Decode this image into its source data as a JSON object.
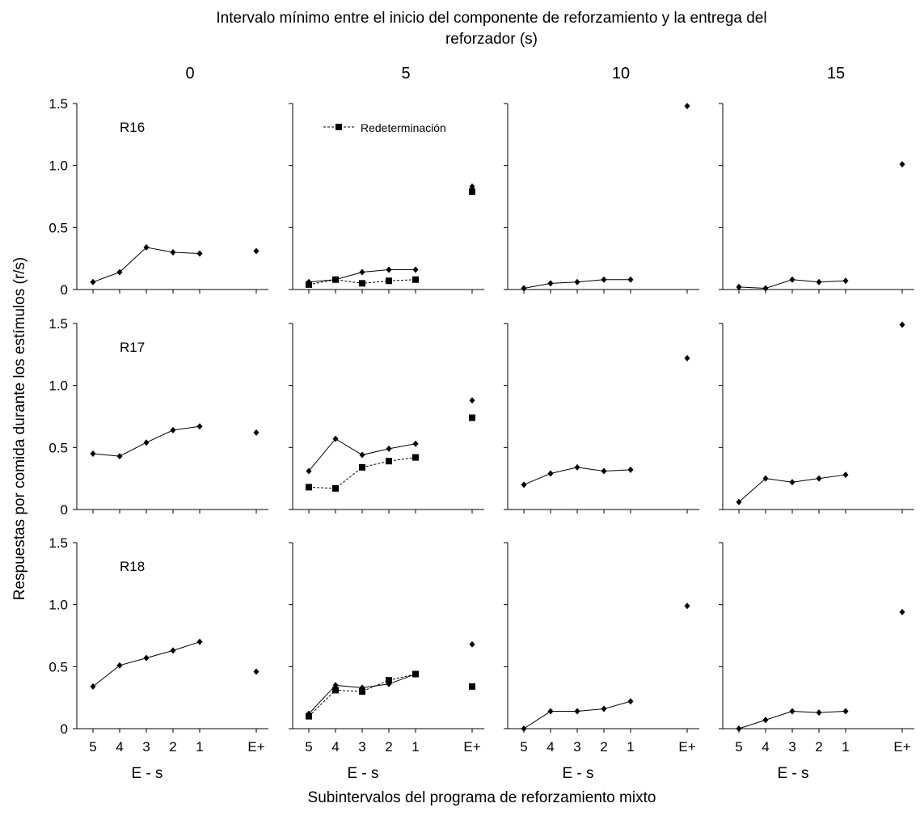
{
  "figure": {
    "title": "Intervalo mínimo entre el inicio del componente de reforzamiento y la entrega del reforzador (s)",
    "title_lines": [
      "Intervalo mínimo entre el inicio del componente de reforzamiento y la entrega del",
      "reforzador (s)"
    ],
    "ylabel": "Respuestas por comida durante los estímulos (r/s)",
    "xlabel": "Subintervalos del programa de reforzamiento mixto",
    "panel_xlabel": "E - s",
    "column_headers": [
      "0",
      "5",
      "10",
      "15"
    ],
    "row_labels": [
      "R16",
      "R17",
      "R18"
    ],
    "legend_label": "Redeterminación"
  },
  "chart_data": {
    "type": "line",
    "layout": "3 rows (subjects) x 4 columns (interval s)",
    "categories": [
      "5",
      "4",
      "3",
      "2",
      "1",
      "E+"
    ],
    "yticks": [
      "0",
      "0.5",
      "1.0",
      "1.5"
    ],
    "ylim": [
      0,
      1.5
    ],
    "grid": false,
    "legend": "top, second column",
    "panels": [
      {
        "subject": "R16",
        "interval": "0",
        "series": [
          {
            "values": [
              0.06,
              0.14,
              0.34,
              0.3,
              0.29,
              0.31
            ]
          }
        ]
      },
      {
        "subject": "R16",
        "interval": "5",
        "series": [
          {
            "values": [
              0.06,
              0.08,
              0.14,
              0.16,
              0.16,
              0.83
            ]
          },
          {
            "name": "Redeterminación",
            "values": [
              0.04,
              0.08,
              0.05,
              0.07,
              0.08,
              0.79
            ]
          }
        ]
      },
      {
        "subject": "R16",
        "interval": "10",
        "series": [
          {
            "values": [
              0.01,
              0.05,
              0.06,
              0.08,
              0.08,
              1.48
            ]
          }
        ]
      },
      {
        "subject": "R16",
        "interval": "15",
        "series": [
          {
            "values": [
              0.02,
              0.01,
              0.08,
              0.06,
              0.07,
              1.01
            ]
          }
        ]
      },
      {
        "subject": "R17",
        "interval": "0",
        "series": [
          {
            "values": [
              0.45,
              0.43,
              0.54,
              0.64,
              0.67,
              0.62
            ]
          }
        ]
      },
      {
        "subject": "R17",
        "interval": "5",
        "series": [
          {
            "values": [
              0.31,
              0.57,
              0.44,
              0.49,
              0.53,
              0.88
            ]
          },
          {
            "name": "Redeterminación",
            "values": [
              0.18,
              0.17,
              0.34,
              0.39,
              0.42,
              0.74
            ]
          }
        ]
      },
      {
        "subject": "R17",
        "interval": "10",
        "series": [
          {
            "values": [
              0.2,
              0.29,
              0.34,
              0.31,
              0.32,
              1.22
            ]
          }
        ]
      },
      {
        "subject": "R17",
        "interval": "15",
        "series": [
          {
            "values": [
              0.06,
              0.25,
              0.22,
              0.25,
              0.28,
              1.49
            ]
          }
        ]
      },
      {
        "subject": "R18",
        "interval": "0",
        "series": [
          {
            "values": [
              0.34,
              0.51,
              0.57,
              0.63,
              0.7,
              0.46
            ]
          }
        ]
      },
      {
        "subject": "R18",
        "interval": "5",
        "series": [
          {
            "values": [
              0.12,
              0.35,
              0.33,
              0.36,
              0.44,
              0.68
            ]
          },
          {
            "name": "Redeterminación",
            "values": [
              0.1,
              0.31,
              0.3,
              0.39,
              0.44,
              0.34
            ]
          }
        ]
      },
      {
        "subject": "R18",
        "interval": "10",
        "series": [
          {
            "values": [
              0.0,
              0.14,
              0.14,
              0.16,
              0.22,
              0.99
            ]
          }
        ]
      },
      {
        "subject": "R18",
        "interval": "15",
        "series": [
          {
            "values": [
              0.0,
              0.07,
              0.14,
              0.13,
              0.14,
              0.94
            ]
          }
        ]
      }
    ]
  }
}
